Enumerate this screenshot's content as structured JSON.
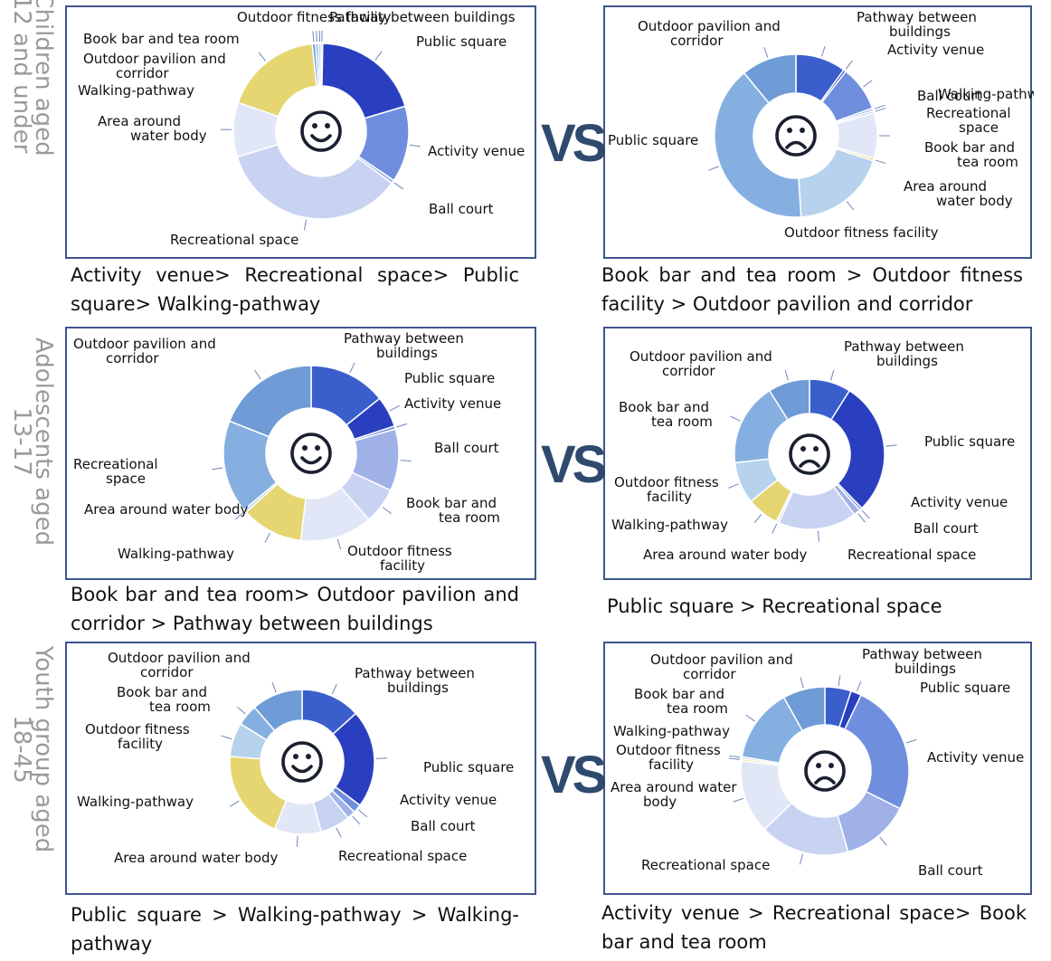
{
  "row_labels": [
    "Children aged 12 and under",
    "Adolescents aged 13-17",
    "Youth group aged 18-45"
  ],
  "vs_label": "VS",
  "captions": [
    "Activity venue> Recreational space> Public square> Walking-pathway",
    "Book bar and tea room > Outdoor fitness facility > Outdoor pavilion and corridor",
    "Book bar and tea room> Outdoor pavilion and corridor > Pathway between buildings",
    "Public square > Recreational space",
    "Public square > Walking-pathway > Walking-pathway",
    "Activity venue > Recreational space> Book bar and tea room"
  ],
  "face_icons": [
    "smiley-face-icon",
    "frowning-face-icon"
  ],
  "colors": {
    "Pathway between buildings": "#3a5fcd",
    "Public square": "#2a3fbf",
    "Activity venue": "#6f8fde",
    "Ball court": "#9fb1e6",
    "Recreational space": "#c8d3f2",
    "Area around water body": "#e1e7f7",
    "Walking-pathway": "#e5d672",
    "Outdoor fitness facility": "#b6d2ec",
    "Book bar and tea room": "#85afe0",
    "Outdoor pavilion and corridor": "#6f9bd6"
  },
  "chart_data": [
    {
      "type": "pie",
      "group": "Children aged 12 and under",
      "sentiment": "positive",
      "categories": [
        "Pathway between buildings",
        "Public square",
        "Activity venue",
        "Ball court",
        "Recreational space",
        "Area around water body",
        "Walking-pathway",
        "Outdoor pavilion and corridor",
        "Book bar and tea room",
        "Outdoor fitness facility"
      ],
      "values": [
        0.3,
        20,
        14,
        0.6,
        35,
        10,
        18,
        0.6,
        0.5,
        0.5
      ]
    },
    {
      "type": "pie",
      "group": "Children aged 12 and under",
      "sentiment": "negative",
      "categories": [
        "Pathway between buildings",
        "Public square",
        "Activity venue",
        "Ball court",
        "Recreational space",
        "Area around water body",
        "Walking-pathway",
        "Outdoor fitness facility",
        "Book bar and tea room",
        "Outdoor pavilion and corridor"
      ],
      "values": [
        10,
        0.5,
        9,
        0.5,
        0.5,
        9,
        0.5,
        19,
        40,
        11
      ]
    },
    {
      "type": "pie",
      "group": "Adolescents aged 13-17",
      "sentiment": "positive",
      "categories": [
        "Pathway between buildings",
        "Public square",
        "Activity venue",
        "Ball court",
        "Recreational space",
        "Area around water body",
        "Walking-pathway",
        "Outdoor fitness facility",
        "Book bar and tea room",
        "Outdoor pavilion and corridor"
      ],
      "values": [
        15,
        6,
        0.6,
        12,
        7,
        14,
        12,
        0.6,
        18,
        20
      ]
    },
    {
      "type": "pie",
      "group": "Adolescents aged 13-17",
      "sentiment": "negative",
      "categories": [
        "Pathway between buildings",
        "Public square",
        "Activity venue",
        "Ball court",
        "Recreational space",
        "Area around water body",
        "Walking-pathway",
        "Outdoor fitness facility",
        "Book bar and tea room",
        "Outdoor pavilion and corridor"
      ],
      "values": [
        9,
        29,
        0.6,
        1.5,
        17,
        0.6,
        7,
        9,
        18,
        9
      ]
    },
    {
      "type": "pie",
      "group": "Youth group aged 18-45",
      "sentiment": "positive",
      "categories": [
        "Pathway between buildings",
        "Public square",
        "Activity venue",
        "Ball court",
        "Recreational space",
        "Area around water body",
        "Walking-pathway",
        "Outdoor fitness facility",
        "Book bar and tea room",
        "Outdoor pavilion and corridor"
      ],
      "values": [
        14,
        23,
        2,
        2,
        7,
        11,
        21,
        8,
        5,
        12
      ]
    },
    {
      "type": "pie",
      "group": "Youth group aged 18-45",
      "sentiment": "negative",
      "categories": [
        "Pathway between buildings",
        "Public square",
        "Activity venue",
        "Ball court",
        "Recreational space",
        "Area around water body",
        "Walking-pathway",
        "Outdoor fitness facility",
        "Book bar and tea room",
        "Outdoor pavilion and corridor"
      ],
      "values": [
        5,
        2,
        25,
        13,
        17,
        14,
        0.4,
        0.4,
        14,
        8
      ]
    }
  ],
  "panel_labels": [
    [
      {
        "text": [
          "Outdoor fitness facility"
        ]
      },
      {
        "text": [
          "Pathway between buildings"
        ]
      },
      {
        "text": [
          "Book bar and tea room"
        ]
      },
      {
        "text": [
          "Public square"
        ]
      },
      {
        "text": [
          "Outdoor pavilion and",
          "corridor"
        ]
      },
      {
        "text": [
          "Walking-pathway"
        ]
      },
      {
        "text": [
          "Area around",
          "water body"
        ]
      },
      {
        "text": [
          "Activity venue"
        ]
      },
      {
        "text": [
          "Ball court"
        ]
      },
      {
        "text": [
          "Recreational space"
        ]
      }
    ],
    [
      {
        "text": [
          "Outdoor pavilion and",
          "corridor"
        ]
      },
      {
        "text": [
          "Pathway between",
          "buildings"
        ]
      },
      {
        "text": [
          "Public square"
        ]
      },
      {
        "text": [
          "Activity venue"
        ]
      },
      {
        "text": [
          "Ball court"
        ]
      },
      {
        "text": [
          "Recreational",
          "space"
        ]
      },
      {
        "text": [
          "Book bar and",
          "tea room"
        ]
      },
      {
        "text": [
          "Area around",
          "water body"
        ]
      },
      {
        "text": [
          "Walking-pathway"
        ]
      },
      {
        "text": [
          "Outdoor fitness facility"
        ]
      }
    ],
    [
      {
        "text": [
          "Outdoor pavilion and",
          "corridor"
        ]
      },
      {
        "text": [
          "Pathway between",
          "buildings"
        ]
      },
      {
        "text": [
          "Public square"
        ]
      },
      {
        "text": [
          "Activity venue"
        ]
      },
      {
        "text": [
          "Ball court"
        ]
      },
      {
        "text": [
          "Book bar and",
          "tea room"
        ]
      },
      {
        "text": [
          "Recreational",
          "space"
        ]
      },
      {
        "text": [
          "Outdoor fitness",
          "facility"
        ]
      },
      {
        "text": [
          "Walking-pathway"
        ]
      },
      {
        "text": [
          "Area around water body"
        ]
      }
    ],
    [
      {
        "text": [
          "Outdoor pavilion and",
          "corridor"
        ]
      },
      {
        "text": [
          "Pathway between",
          "buildings"
        ]
      },
      {
        "text": [
          "Book bar and",
          "tea room"
        ]
      },
      {
        "text": [
          "Public square"
        ]
      },
      {
        "text": [
          "Outdoor fitness",
          "facility"
        ]
      },
      {
        "text": [
          "Activity venue"
        ]
      },
      {
        "text": [
          "Walking-pathway"
        ]
      },
      {
        "text": [
          "Ball court"
        ]
      },
      {
        "text": [
          "Area around water body"
        ]
      },
      {
        "text": [
          "Recreational space"
        ]
      }
    ],
    [
      {
        "text": [
          "Outdoor pavilion and",
          "corridor"
        ]
      },
      {
        "text": [
          "Pathway between",
          "buildings"
        ]
      },
      {
        "text": [
          "Book bar and",
          "tea room"
        ]
      },
      {
        "text": [
          "Outdoor fitness",
          "facility"
        ]
      },
      {
        "text": [
          "Public square"
        ]
      },
      {
        "text": [
          "Walking-pathway"
        ]
      },
      {
        "text": [
          "Activity venue"
        ]
      },
      {
        "text": [
          "Ball court"
        ]
      },
      {
        "text": [
          "Area around water body"
        ]
      },
      {
        "text": [
          "Recreational space"
        ]
      }
    ],
    [
      {
        "text": [
          "Outdoor pavilion and",
          "corridor"
        ]
      },
      {
        "text": [
          "Pathway between",
          "buildings"
        ]
      },
      {
        "text": [
          "Book bar and",
          "tea room"
        ]
      },
      {
        "text": [
          "Public square"
        ]
      },
      {
        "text": [
          "Walking-pathway"
        ]
      },
      {
        "text": [
          "Outdoor fitness",
          "facility"
        ]
      },
      {
        "text": [
          "Activity venue"
        ]
      },
      {
        "text": [
          "Area around water",
          "body"
        ]
      },
      {
        "text": [
          "Recreational space"
        ]
      },
      {
        "text": [
          "Ball court"
        ]
      }
    ]
  ]
}
